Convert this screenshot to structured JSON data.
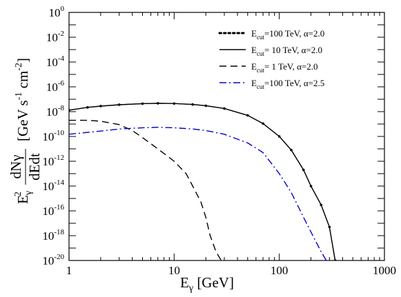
{
  "chart_data": {
    "type": "line",
    "xlabel": {
      "base": "E",
      "sub": "γ",
      "rest": " [GeV]"
    },
    "ylabel": {
      "prefix": "E",
      "prefix_sub": "γ",
      "prefix_sup": "2",
      "frac_num": "dNγ",
      "frac_den": "dEdt",
      "units": "[GeV s",
      "units_sup1": "-1",
      "units_mid": " cm",
      "units_sup2": "-2",
      "units_end": "]"
    },
    "x_scale": "log",
    "y_scale": "log",
    "xlim": [
      1,
      1000
    ],
    "ylim": [
      1e-20,
      1
    ],
    "x_ticks": [
      {
        "value": 1,
        "label": "1"
      },
      {
        "value": 10,
        "label": "10"
      },
      {
        "value": 100,
        "label": "100"
      },
      {
        "value": 1000,
        "label": "1000"
      }
    ],
    "y_ticks": [
      {
        "value": 1,
        "base": "10",
        "exp": "0"
      },
      {
        "value": 0.01,
        "base": "10",
        "exp": "-2"
      },
      {
        "value": 0.0001,
        "base": "10",
        "exp": "-4"
      },
      {
        "value": 1e-06,
        "base": "10",
        "exp": "-6"
      },
      {
        "value": 1e-08,
        "base": "10",
        "exp": "-8"
      },
      {
        "value": 1e-10,
        "base": "10",
        "exp": "-10"
      },
      {
        "value": 1e-12,
        "base": "10",
        "exp": "-12"
      },
      {
        "value": 1e-14,
        "base": "10",
        "exp": "-14"
      },
      {
        "value": 1e-16,
        "base": "10",
        "exp": "-16"
      },
      {
        "value": 1e-18,
        "base": "10",
        "exp": "-18"
      },
      {
        "value": 1e-20,
        "base": "10",
        "exp": "-20"
      }
    ],
    "grid": false,
    "legend_position": "top-right",
    "series": [
      {
        "label": {
          "pre": "E",
          "sub": "cut",
          "post": "=100 TeV, α=2.0"
        },
        "color": "#000000",
        "style": "dotted",
        "x": [
          1,
          1.5,
          2,
          3,
          5,
          7,
          10,
          15,
          20,
          30,
          50,
          70,
          100,
          130,
          170,
          200,
          250,
          300,
          340
        ],
        "y": [
          1.3e-08,
          2.2e-08,
          2.8e-08,
          3.6e-08,
          4.4e-08,
          4.7e-08,
          4.5e-08,
          3.8e-08,
          3e-08,
          1.8e-08,
          5e-09,
          1.1e-09,
          1e-10,
          8e-12,
          2e-13,
          1e-14,
          3e-16,
          5e-18,
          1e-20
        ]
      },
      {
        "label": {
          "pre": "E",
          "sub": "cut",
          "post": "=  10 TeV, α=2.0"
        },
        "color": "#000000",
        "style": "solid",
        "x": [
          1,
          1.5,
          2,
          3,
          5,
          7,
          10,
          15,
          20,
          30,
          50,
          70,
          100,
          130,
          170,
          200,
          250,
          300,
          340
        ],
        "y": [
          1.3e-08,
          2.2e-08,
          2.8e-08,
          3.6e-08,
          4.4e-08,
          4.7e-08,
          4.5e-08,
          3.8e-08,
          3e-08,
          1.8e-08,
          5e-09,
          1.1e-09,
          1e-10,
          8e-12,
          2e-13,
          1e-14,
          3e-16,
          5e-18,
          1e-20
        ]
      },
      {
        "label": {
          "pre": "E",
          "sub": "cut",
          "post": "=    1 TeV, α=2.0"
        },
        "color": "#000000",
        "style": "dashed",
        "x": [
          1,
          1.5,
          2,
          3,
          4,
          5,
          7,
          10,
          13,
          15,
          18,
          20,
          22,
          25,
          28
        ],
        "y": [
          2e-09,
          2e-09,
          1.7e-09,
          9e-10,
          3e-10,
          8e-11,
          1e-11,
          1e-12,
          1e-13,
          1e-14,
          5e-16,
          3e-17,
          1e-18,
          5e-20,
          1e-20
        ]
      },
      {
        "label": {
          "pre": "E",
          "sub": "cut",
          "post": "=100 TeV, α=2.5"
        },
        "color": "#0000cc",
        "style": "dashdot",
        "x": [
          1,
          2,
          3,
          5,
          7,
          10,
          15,
          20,
          30,
          50,
          70,
          100,
          130,
          170,
          200,
          250,
          280
        ],
        "y": [
          1.5e-10,
          2.7e-10,
          4e-10,
          5e-10,
          5.5e-10,
          5e-10,
          4e-10,
          3e-10,
          1.5e-10,
          3e-11,
          5e-12,
          1e-13,
          3e-15,
          3e-17,
          2e-18,
          5e-20,
          1e-20
        ]
      }
    ]
  }
}
